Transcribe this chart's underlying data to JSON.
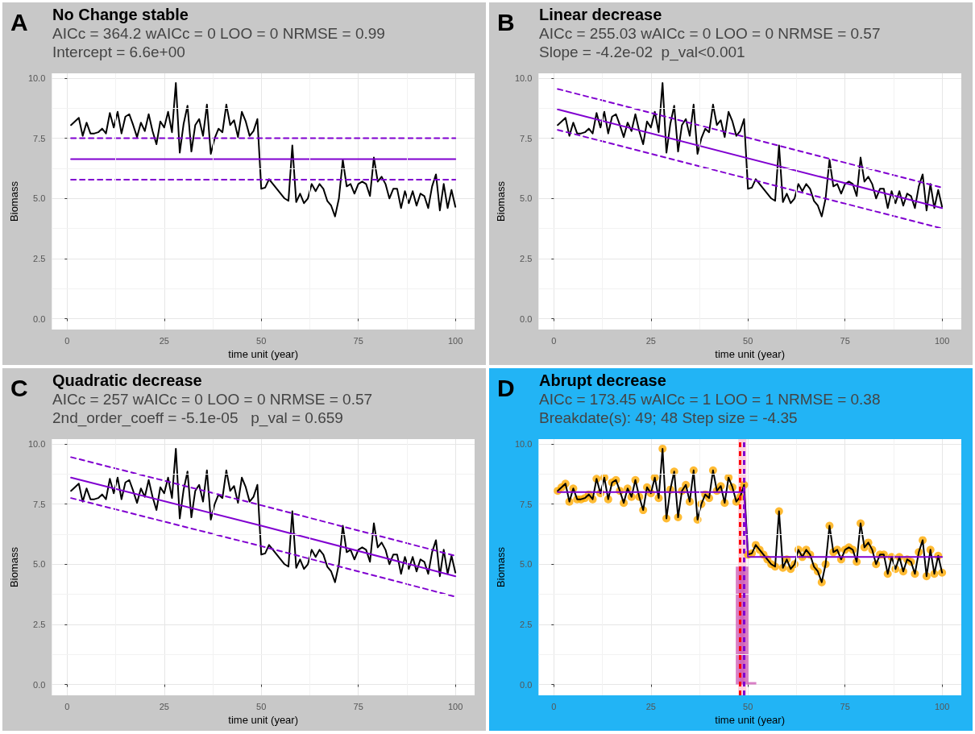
{
  "chart_data": [
    {
      "type": "line",
      "title": "No Change stable",
      "subtitle": "AICc = 364.2 wAICc = 0 LOO = 0 NRMSE = 0.99\nIntercept = 6.6e+00",
      "annotations": [
        "A"
      ],
      "xlabel": "time unit (year)",
      "ylabel": "Biomass",
      "xlim": [
        -3.95,
        104.95
      ],
      "xticks": [
        0,
        25,
        50,
        75,
        100
      ],
      "ylim": [
        -0.45,
        10.2
      ],
      "yticks": [
        {
          "value": 0,
          "label": "0.0"
        },
        {
          "value": 2.5,
          "label": "2.5"
        },
        {
          "value": 5,
          "label": "5.0"
        },
        {
          "value": 7.5,
          "label": "7.5"
        },
        {
          "value": 10,
          "label": "10.0"
        }
      ],
      "grid": true,
      "x": [
        1,
        2,
        3,
        4,
        5,
        6,
        7,
        8,
        9,
        10,
        11,
        12,
        13,
        14,
        15,
        16,
        17,
        18,
        19,
        20,
        21,
        22,
        23,
        24,
        25,
        26,
        27,
        28,
        29,
        30,
        31,
        32,
        33,
        34,
        35,
        36,
        37,
        38,
        39,
        40,
        41,
        42,
        43,
        44,
        45,
        46,
        47,
        48,
        49,
        50,
        51,
        52,
        53,
        54,
        55,
        56,
        57,
        58,
        59,
        60,
        61,
        62,
        63,
        64,
        65,
        66,
        67,
        68,
        69,
        70,
        71,
        72,
        73,
        74,
        75,
        76,
        77,
        78,
        79,
        80,
        81,
        82,
        83,
        84,
        85,
        86,
        87,
        88,
        89,
        90,
        91,
        92,
        93,
        94,
        95,
        96,
        97,
        98,
        99,
        100
      ],
      "series": [
        {
          "color": "#000000",
          "line_style": "solid",
          "values": [
            8.05,
            8.2,
            8.35,
            7.6,
            8.15,
            7.7,
            7.7,
            7.75,
            7.9,
            7.7,
            8.55,
            7.95,
            8.6,
            7.7,
            8.4,
            8.5,
            8.05,
            7.55,
            8.15,
            7.8,
            8.5,
            7.8,
            7.25,
            8.2,
            7.95,
            8.6,
            7.75,
            9.8,
            6.9,
            8.1,
            8.85,
            6.95,
            8.05,
            8.3,
            7.6,
            8.9,
            6.85,
            7.5,
            7.9,
            7.75,
            8.9,
            8.05,
            8.25,
            7.55,
            8.6,
            8.2,
            7.6,
            7.8,
            8.3,
            5.4,
            5.45,
            5.8,
            5.6,
            5.4,
            5.2,
            5.0,
            4.9,
            7.2,
            4.85,
            5.2,
            4.8,
            5.0,
            5.6,
            5.3,
            5.6,
            5.4,
            4.9,
            4.7,
            4.25,
            5.0,
            6.6,
            5.5,
            5.6,
            5.2,
            5.6,
            5.7,
            5.6,
            5.1,
            6.7,
            5.7,
            5.9,
            5.6,
            5.0,
            5.4,
            5.4,
            4.6,
            5.3,
            4.8,
            5.3,
            4.7,
            5.2,
            5.1,
            4.6,
            5.5,
            6.0,
            4.5,
            5.6,
            4.6,
            5.35,
            4.65
          ]
        },
        {
          "color": "#8000d0",
          "line_style": "solid",
          "x": [
            1,
            100
          ],
          "values": [
            6.63,
            6.63
          ]
        },
        {
          "color": "#8000d0",
          "line_style": "dashed",
          "x": [
            1,
            100
          ],
          "values": [
            7.5,
            7.5
          ]
        },
        {
          "color": "#8000d0",
          "line_style": "dashed",
          "x": [
            1,
            100
          ],
          "values": [
            5.78,
            5.78
          ]
        }
      ]
    },
    {
      "type": "line",
      "title": "Linear decrease",
      "subtitle": "AICc = 255.03 wAICc = 0 LOO = 0 NRMSE = 0.57\nSlope = -4.2e-02  p_val<0.001",
      "annotations": [
        "B"
      ],
      "xlabel": "time unit (year)",
      "ylabel": "Biomass",
      "xlim": [
        -3.95,
        104.95
      ],
      "xticks": [
        0,
        25,
        50,
        75,
        100
      ],
      "ylim": [
        -0.45,
        10.2
      ],
      "yticks": [
        {
          "value": 0,
          "label": "0.0"
        },
        {
          "value": 2.5,
          "label": "2.5"
        },
        {
          "value": 5,
          "label": "5.0"
        },
        {
          "value": 7.5,
          "label": "7.5"
        },
        {
          "value": 10,
          "label": "10.0"
        }
      ],
      "grid": true,
      "x": [
        1,
        2,
        3,
        4,
        5,
        6,
        7,
        8,
        9,
        10,
        11,
        12,
        13,
        14,
        15,
        16,
        17,
        18,
        19,
        20,
        21,
        22,
        23,
        24,
        25,
        26,
        27,
        28,
        29,
        30,
        31,
        32,
        33,
        34,
        35,
        36,
        37,
        38,
        39,
        40,
        41,
        42,
        43,
        44,
        45,
        46,
        47,
        48,
        49,
        50,
        51,
        52,
        53,
        54,
        55,
        56,
        57,
        58,
        59,
        60,
        61,
        62,
        63,
        64,
        65,
        66,
        67,
        68,
        69,
        70,
        71,
        72,
        73,
        74,
        75,
        76,
        77,
        78,
        79,
        80,
        81,
        82,
        83,
        84,
        85,
        86,
        87,
        88,
        89,
        90,
        91,
        92,
        93,
        94,
        95,
        96,
        97,
        98,
        99,
        100
      ],
      "series": [
        {
          "color": "#000000",
          "line_style": "solid",
          "values": [
            8.05,
            8.2,
            8.35,
            7.6,
            8.15,
            7.7,
            7.7,
            7.75,
            7.9,
            7.7,
            8.55,
            7.95,
            8.6,
            7.7,
            8.4,
            8.5,
            8.05,
            7.55,
            8.15,
            7.8,
            8.5,
            7.8,
            7.25,
            8.2,
            7.95,
            8.6,
            7.75,
            9.8,
            6.9,
            8.1,
            8.85,
            6.95,
            8.05,
            8.3,
            7.6,
            8.9,
            6.85,
            7.5,
            7.9,
            7.75,
            8.9,
            8.05,
            8.25,
            7.55,
            8.6,
            8.2,
            7.6,
            7.8,
            8.3,
            5.4,
            5.45,
            5.8,
            5.6,
            5.4,
            5.2,
            5.0,
            4.9,
            7.2,
            4.85,
            5.2,
            4.8,
            5.0,
            5.6,
            5.3,
            5.6,
            5.4,
            4.9,
            4.7,
            4.25,
            5.0,
            6.6,
            5.5,
            5.6,
            5.2,
            5.6,
            5.7,
            5.6,
            5.1,
            6.7,
            5.7,
            5.9,
            5.6,
            5.0,
            5.4,
            5.4,
            4.6,
            5.3,
            4.8,
            5.3,
            4.7,
            5.2,
            5.1,
            4.6,
            5.5,
            6.0,
            4.5,
            5.6,
            4.6,
            5.35,
            4.65
          ]
        },
        {
          "color": "#8000d0",
          "line_style": "solid",
          "x": [
            1,
            100
          ],
          "values": [
            8.7,
            4.6
          ]
        },
        {
          "color": "#8000d0",
          "line_style": "dashed",
          "x": [
            1,
            100
          ],
          "values": [
            9.55,
            5.45
          ]
        },
        {
          "color": "#8000d0",
          "line_style": "dashed",
          "x": [
            1,
            100
          ],
          "values": [
            7.85,
            3.75
          ]
        }
      ]
    },
    {
      "type": "line",
      "title": "Quadratic decrease",
      "subtitle": "AICc = 257 wAICc = 0 LOO = 0 NRMSE = 0.57\n2nd_order_coeff = -5.1e-05   p_val = 0.659",
      "annotations": [
        "C"
      ],
      "xlabel": "time unit (year)",
      "ylabel": "Biomass",
      "xlim": [
        -3.95,
        104.95
      ],
      "xticks": [
        0,
        25,
        50,
        75,
        100
      ],
      "ylim": [
        -0.45,
        10.2
      ],
      "yticks": [
        {
          "value": 0,
          "label": "0.0"
        },
        {
          "value": 2.5,
          "label": "2.5"
        },
        {
          "value": 5,
          "label": "5.0"
        },
        {
          "value": 7.5,
          "label": "7.5"
        },
        {
          "value": 10,
          "label": "10.0"
        }
      ],
      "grid": true,
      "x": [
        1,
        2,
        3,
        4,
        5,
        6,
        7,
        8,
        9,
        10,
        11,
        12,
        13,
        14,
        15,
        16,
        17,
        18,
        19,
        20,
        21,
        22,
        23,
        24,
        25,
        26,
        27,
        28,
        29,
        30,
        31,
        32,
        33,
        34,
        35,
        36,
        37,
        38,
        39,
        40,
        41,
        42,
        43,
        44,
        45,
        46,
        47,
        48,
        49,
        50,
        51,
        52,
        53,
        54,
        55,
        56,
        57,
        58,
        59,
        60,
        61,
        62,
        63,
        64,
        65,
        66,
        67,
        68,
        69,
        70,
        71,
        72,
        73,
        74,
        75,
        76,
        77,
        78,
        79,
        80,
        81,
        82,
        83,
        84,
        85,
        86,
        87,
        88,
        89,
        90,
        91,
        92,
        93,
        94,
        95,
        96,
        97,
        98,
        99,
        100
      ],
      "series": [
        {
          "color": "#000000",
          "line_style": "solid",
          "values": [
            8.05,
            8.2,
            8.35,
            7.6,
            8.15,
            7.7,
            7.7,
            7.75,
            7.9,
            7.7,
            8.55,
            7.95,
            8.6,
            7.7,
            8.4,
            8.5,
            8.05,
            7.55,
            8.15,
            7.8,
            8.5,
            7.8,
            7.25,
            8.2,
            7.95,
            8.6,
            7.75,
            9.8,
            6.9,
            8.1,
            8.85,
            6.95,
            8.05,
            8.3,
            7.6,
            8.9,
            6.85,
            7.5,
            7.9,
            7.75,
            8.9,
            8.05,
            8.25,
            7.55,
            8.6,
            8.2,
            7.6,
            7.8,
            8.3,
            5.4,
            5.45,
            5.8,
            5.6,
            5.4,
            5.2,
            5.0,
            4.9,
            7.2,
            4.85,
            5.2,
            4.8,
            5.0,
            5.6,
            5.3,
            5.6,
            5.4,
            4.9,
            4.7,
            4.25,
            5.0,
            6.6,
            5.5,
            5.6,
            5.2,
            5.6,
            5.7,
            5.6,
            5.1,
            6.7,
            5.7,
            5.9,
            5.6,
            5.0,
            5.4,
            5.4,
            4.6,
            5.3,
            4.8,
            5.3,
            4.7,
            5.2,
            5.1,
            4.6,
            5.5,
            6.0,
            4.5,
            5.6,
            4.6,
            5.35,
            4.65
          ]
        },
        {
          "color": "#8000d0",
          "line_style": "solid",
          "x": [
            1,
            50,
            100
          ],
          "values": [
            8.6,
            6.6,
            4.5
          ]
        },
        {
          "color": "#8000d0",
          "line_style": "dashed",
          "x": [
            1,
            50,
            100
          ],
          "values": [
            9.45,
            7.45,
            5.35
          ]
        },
        {
          "color": "#8000d0",
          "line_style": "dashed",
          "x": [
            1,
            50,
            100
          ],
          "values": [
            7.75,
            5.75,
            3.65
          ]
        }
      ]
    },
    {
      "type": "line",
      "title": "Abrupt decrease",
      "subtitle": "AICc = 173.45 wAICc = 1 LOO = 1 NRMSE = 0.38\nBreakdate(s): 49; 48 Step size = -4.35",
      "annotations": [
        "D"
      ],
      "xlabel": "time unit (year)",
      "ylabel": "Biomass",
      "xlim": [
        -3.95,
        104.95
      ],
      "xticks": [
        0,
        25,
        50,
        75,
        100
      ],
      "ylim": [
        -0.45,
        10.2
      ],
      "yticks": [
        {
          "value": 0,
          "label": "0.0"
        },
        {
          "value": 2.5,
          "label": "2.5"
        },
        {
          "value": 5,
          "label": "5.0"
        },
        {
          "value": 7.5,
          "label": "7.5"
        },
        {
          "value": 10,
          "label": "10.0"
        }
      ],
      "grid": true,
      "bands": [
        {
          "axis": "x",
          "from": 47.5,
          "to": 49.6,
          "color": "#ffd0dc"
        }
      ],
      "ref_lines": [
        {
          "axis": "x",
          "value": 48,
          "color": "#ff0000",
          "line_style": "dashed"
        },
        {
          "axis": "x",
          "value": 49,
          "color": "#8000d0",
          "line_style": "dashed"
        }
      ],
      "x": [
        1,
        2,
        3,
        4,
        5,
        6,
        7,
        8,
        9,
        10,
        11,
        12,
        13,
        14,
        15,
        16,
        17,
        18,
        19,
        20,
        21,
        22,
        23,
        24,
        25,
        26,
        27,
        28,
        29,
        30,
        31,
        32,
        33,
        34,
        35,
        36,
        37,
        38,
        39,
        40,
        41,
        42,
        43,
        44,
        45,
        46,
        47,
        48,
        49,
        50,
        51,
        52,
        53,
        54,
        55,
        56,
        57,
        58,
        59,
        60,
        61,
        62,
        63,
        64,
        65,
        66,
        67,
        68,
        69,
        70,
        71,
        72,
        73,
        74,
        75,
        76,
        77,
        78,
        79,
        80,
        81,
        82,
        83,
        84,
        85,
        86,
        87,
        88,
        89,
        90,
        91,
        92,
        93,
        94,
        95,
        96,
        97,
        98,
        99,
        100
      ],
      "series": [
        {
          "type": "bar",
          "color": "#d060b8",
          "x": [
            48,
            49,
            51
          ],
          "values": [
            4.9,
            4.9,
            0.1
          ]
        },
        {
          "type": "scatter",
          "color": "#ffaa00",
          "marker": "circle",
          "values": [
            8.05,
            8.2,
            8.35,
            7.6,
            8.15,
            7.7,
            7.7,
            7.75,
            7.9,
            7.7,
            8.55,
            7.95,
            8.6,
            7.7,
            8.4,
            8.5,
            8.05,
            7.55,
            8.15,
            7.8,
            8.5,
            7.8,
            7.25,
            8.2,
            7.95,
            8.6,
            7.75,
            9.8,
            6.9,
            8.1,
            8.85,
            6.95,
            8.05,
            8.3,
            7.6,
            8.9,
            6.85,
            7.5,
            7.9,
            7.75,
            8.9,
            8.05,
            8.25,
            7.55,
            8.6,
            8.2,
            7.6,
            7.8,
            8.3,
            5.4,
            5.45,
            5.8,
            5.6,
            5.4,
            5.2,
            5.0,
            4.9,
            7.2,
            4.85,
            5.2,
            4.8,
            5.0,
            5.6,
            5.3,
            5.6,
            5.4,
            4.9,
            4.7,
            4.25,
            5.0,
            6.6,
            5.5,
            5.6,
            5.2,
            5.6,
            5.7,
            5.6,
            5.1,
            6.7,
            5.7,
            5.9,
            5.6,
            5.0,
            5.4,
            5.4,
            4.6,
            5.3,
            4.8,
            5.3,
            4.7,
            5.2,
            5.1,
            4.6,
            5.5,
            6.0,
            4.5,
            5.6,
            4.6,
            5.35,
            4.65
          ]
        },
        {
          "color": "#000000",
          "line_style": "solid",
          "values": [
            8.05,
            8.2,
            8.35,
            7.6,
            8.15,
            7.7,
            7.7,
            7.75,
            7.9,
            7.7,
            8.55,
            7.95,
            8.6,
            7.7,
            8.4,
            8.5,
            8.05,
            7.55,
            8.15,
            7.8,
            8.5,
            7.8,
            7.25,
            8.2,
            7.95,
            8.6,
            7.75,
            9.8,
            6.9,
            8.1,
            8.85,
            6.95,
            8.05,
            8.3,
            7.6,
            8.9,
            6.85,
            7.5,
            7.9,
            7.75,
            8.9,
            8.05,
            8.25,
            7.55,
            8.6,
            8.2,
            7.6,
            7.8,
            8.3,
            5.4,
            5.45,
            5.8,
            5.6,
            5.4,
            5.2,
            5.0,
            4.9,
            7.2,
            4.85,
            5.2,
            4.8,
            5.0,
            5.6,
            5.3,
            5.6,
            5.4,
            4.9,
            4.7,
            4.25,
            5.0,
            6.6,
            5.5,
            5.6,
            5.2,
            5.6,
            5.7,
            5.6,
            5.1,
            6.7,
            5.7,
            5.9,
            5.6,
            5.0,
            5.4,
            5.4,
            4.6,
            5.3,
            4.8,
            5.3,
            4.7,
            5.2,
            5.1,
            4.6,
            5.5,
            6.0,
            4.5,
            5.6,
            4.6,
            5.35,
            4.65
          ]
        },
        {
          "color": "#8000d0",
          "line_style": "solid",
          "x": [
            1,
            49,
            50,
            100
          ],
          "values": [
            8.0,
            8.0,
            5.3,
            5.3
          ]
        }
      ]
    }
  ]
}
